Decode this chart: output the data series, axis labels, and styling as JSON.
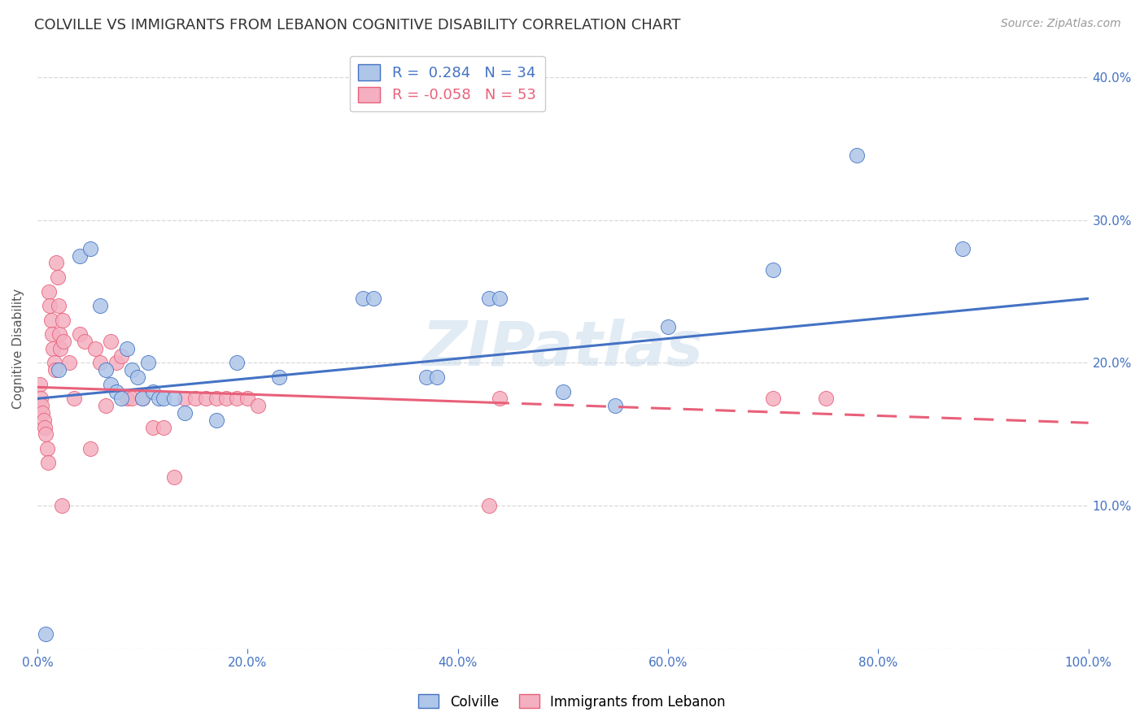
{
  "title": "COLVILLE VS IMMIGRANTS FROM LEBANON COGNITIVE DISABILITY CORRELATION CHART",
  "source": "Source: ZipAtlas.com",
  "xlabel": "",
  "ylabel": "Cognitive Disability",
  "xlim": [
    0,
    1.0
  ],
  "ylim": [
    0,
    0.42
  ],
  "xticks": [
    0.0,
    0.2,
    0.4,
    0.6,
    0.8,
    1.0
  ],
  "yticks": [
    0.0,
    0.1,
    0.2,
    0.3,
    0.4
  ],
  "xticklabels": [
    "0.0%",
    "20.0%",
    "40.0%",
    "60.0%",
    "80.0%",
    "100.0%"
  ],
  "yticklabels_right": [
    "",
    "10.0%",
    "20.0%",
    "30.0%",
    "40.0%"
  ],
  "colville_R": 0.284,
  "colville_N": 34,
  "lebanon_R": -0.058,
  "lebanon_N": 53,
  "colville_color": "#aec6e8",
  "lebanon_color": "#f4afc0",
  "colville_line_color": "#4472c4",
  "lebanon_line_color": "#e8607a",
  "legend_colville": "Colville",
  "legend_lebanon": "Immigrants from Lebanon",
  "watermark": "ZIPatlas",
  "background_color": "#ffffff",
  "grid_color": "#d8d8d8",
  "colville_x": [
    0.008,
    0.02,
    0.04,
    0.05,
    0.06,
    0.065,
    0.07,
    0.075,
    0.08,
    0.085,
    0.09,
    0.095,
    0.1,
    0.105,
    0.11,
    0.115,
    0.12,
    0.13,
    0.14,
    0.17,
    0.19,
    0.23,
    0.31,
    0.32,
    0.37,
    0.38,
    0.43,
    0.44,
    0.5,
    0.55,
    0.6,
    0.7,
    0.78,
    0.88
  ],
  "colville_y": [
    0.01,
    0.195,
    0.275,
    0.28,
    0.24,
    0.195,
    0.185,
    0.18,
    0.175,
    0.21,
    0.195,
    0.19,
    0.175,
    0.2,
    0.18,
    0.175,
    0.175,
    0.175,
    0.165,
    0.16,
    0.2,
    0.19,
    0.245,
    0.245,
    0.19,
    0.19,
    0.245,
    0.245,
    0.18,
    0.17,
    0.225,
    0.265,
    0.345,
    0.28
  ],
  "lebanon_x": [
    0.002,
    0.003,
    0.004,
    0.005,
    0.006,
    0.007,
    0.008,
    0.009,
    0.01,
    0.011,
    0.012,
    0.013,
    0.014,
    0.015,
    0.016,
    0.017,
    0.018,
    0.019,
    0.02,
    0.021,
    0.022,
    0.023,
    0.024,
    0.025,
    0.03,
    0.035,
    0.04,
    0.045,
    0.05,
    0.055,
    0.06,
    0.065,
    0.07,
    0.075,
    0.08,
    0.085,
    0.09,
    0.1,
    0.11,
    0.12,
    0.13,
    0.14,
    0.15,
    0.16,
    0.17,
    0.18,
    0.19,
    0.2,
    0.21,
    0.43,
    0.44,
    0.7,
    0.75
  ],
  "lebanon_y": [
    0.185,
    0.175,
    0.17,
    0.165,
    0.16,
    0.155,
    0.15,
    0.14,
    0.13,
    0.25,
    0.24,
    0.23,
    0.22,
    0.21,
    0.2,
    0.195,
    0.27,
    0.26,
    0.24,
    0.22,
    0.21,
    0.1,
    0.23,
    0.215,
    0.2,
    0.175,
    0.22,
    0.215,
    0.14,
    0.21,
    0.2,
    0.17,
    0.215,
    0.2,
    0.205,
    0.175,
    0.175,
    0.175,
    0.155,
    0.155,
    0.12,
    0.175,
    0.175,
    0.175,
    0.175,
    0.175,
    0.175,
    0.175,
    0.17,
    0.1,
    0.175,
    0.175,
    0.175
  ],
  "title_fontsize": 13,
  "source_fontsize": 10,
  "tick_fontsize": 11,
  "ylabel_fontsize": 11
}
